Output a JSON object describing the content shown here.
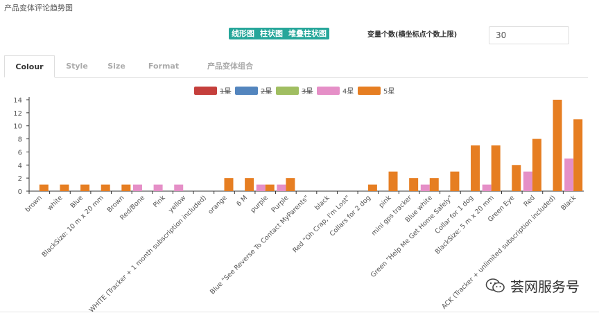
{
  "page_title": "产品变体评论趋势图",
  "chart_types": [
    {
      "label": "线形图"
    },
    {
      "label": "柱状图"
    },
    {
      "label": "堆叠柱状图"
    }
  ],
  "variant_count": {
    "label": "变量个数(横坐标点个数上限)",
    "value": "30"
  },
  "tabs": [
    {
      "label": "Colour"
    },
    {
      "label": "Style"
    },
    {
      "label": "Size"
    },
    {
      "label": "Format"
    },
    {
      "label": "产品变体组合"
    }
  ],
  "watermark": {
    "text": "荟网服务号",
    "icon": "wechat-icon"
  },
  "chart_data": {
    "type": "bar",
    "categories": [
      "brown",
      "white",
      "Blue",
      "BlackSize: 10 m x 20 mm",
      "Brown",
      "Red/Bone",
      "Pink",
      "yellow",
      "WHITE (Tracker + 1 month subscription included)",
      "orange",
      "6 M",
      "purple",
      "Purple",
      "Blue \"See Reverse To Contact MyParents\"",
      "black",
      "Red \"Oh Crap, I'm Lost\"",
      "Collars for 2 dog",
      "pink",
      "mini gps tracker",
      "Blue white",
      "Green \"Help Me Get Home Safely\"",
      "Collar for 1 dog",
      "BlackSize: 5 m x 20 mm",
      "Green Eye",
      "Red",
      "BLACK (Tracker + unlimited subscription included)",
      "Black"
    ],
    "category_labels_visible": [
      "brown",
      "white",
      "Blue",
      "BlackSize: 10 m x 20 mm",
      "Brown",
      "Red/Bone",
      "Pink",
      "yellow",
      "WHITE (Tracker + 1 month subscription included)",
      "orange",
      "6 M",
      "purple",
      "Purple",
      "Blue \"See Reverse To Contact MyParents\"",
      "black",
      "Red \"Oh Crap, I'm Lost\"",
      "Collars for 2 dog",
      "pink",
      "mini gps tracker",
      "Blue white",
      "Green \"Help Me Get Home Safely\"",
      "Collar for 1 dog",
      "BlackSize: 5 m x 20 mm",
      "Green Eye",
      "Red",
      "ACK (Tracker + unlimited subscription included)",
      "Black"
    ],
    "series": [
      {
        "name": "1星",
        "color": "#c23531",
        "enabled": false,
        "values": [
          0,
          0,
          0,
          0,
          0,
          0,
          0,
          0,
          0,
          0,
          0,
          0,
          0,
          0,
          0,
          0,
          0,
          0,
          0,
          0,
          0,
          0,
          0,
          0,
          0,
          0,
          0
        ]
      },
      {
        "name": "2星",
        "color": "#4a7ebb",
        "enabled": false,
        "values": [
          0,
          0,
          0,
          0,
          0,
          0,
          0,
          0,
          0,
          0,
          0,
          0,
          0,
          0,
          0,
          0,
          0,
          0,
          0,
          0,
          0,
          0,
          0,
          0,
          0,
          0,
          0
        ]
      },
      {
        "name": "3星",
        "color": "#9bbb59",
        "enabled": false,
        "values": [
          0,
          0,
          0,
          0,
          0,
          0,
          0,
          0,
          0,
          0,
          0,
          0,
          0,
          0,
          0,
          0,
          0,
          0,
          0,
          0,
          0,
          0,
          0,
          0,
          0,
          0,
          0
        ]
      },
      {
        "name": "4星",
        "color": "#e58fc7",
        "enabled": true,
        "values": [
          0,
          0,
          0,
          0,
          0,
          1,
          1,
          1,
          0,
          0,
          0,
          1,
          1,
          0,
          0,
          0,
          0,
          0,
          0,
          1,
          0,
          0,
          1,
          0,
          3,
          0,
          5
        ]
      },
      {
        "name": "5星",
        "color": "#e67e22",
        "enabled": true,
        "values": [
          1,
          1,
          1,
          1,
          1,
          0,
          0,
          0,
          0,
          2,
          2,
          1,
          2,
          0,
          0,
          0,
          1,
          3,
          2,
          2,
          3,
          7,
          7,
          4,
          8,
          14,
          11
        ]
      }
    ],
    "ylim": [
      0,
      14
    ],
    "yticks": [
      0,
      2,
      4,
      6,
      8,
      10,
      12,
      14
    ],
    "grid": false,
    "legend": "top"
  }
}
